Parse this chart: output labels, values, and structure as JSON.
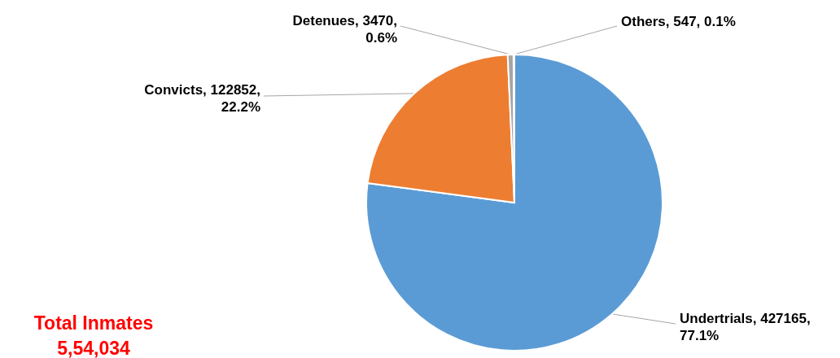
{
  "chart_data": {
    "type": "pie",
    "categories": [
      "Undertrials",
      "Convicts",
      "Detenues",
      "Others"
    ],
    "values": [
      427165,
      122852,
      3470,
      547
    ],
    "colors": [
      "#5b9bd5",
      "#ed7d31",
      "#a5a5a5",
      "#d9d9d9"
    ],
    "value_labels": [
      "427165, 77.1%",
      "122852, 22.2%",
      "3470, 0.6%",
      "547, 0.1%"
    ],
    "annotations": [
      "Total Inmates",
      "5,54,034"
    ]
  }
}
